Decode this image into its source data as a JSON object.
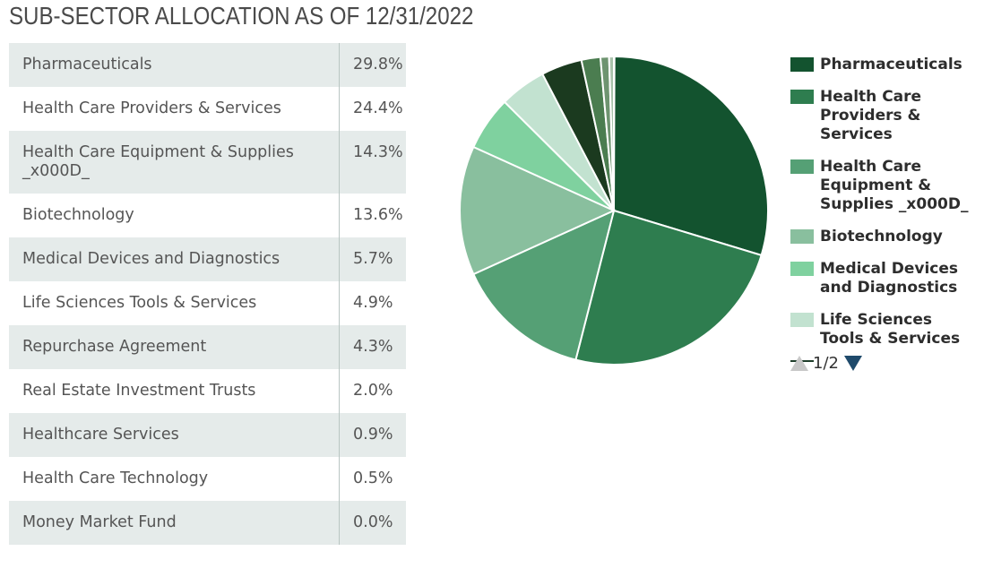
{
  "title": "SUB-SECTOR ALLOCATION AS OF 12/31/2022",
  "table": {
    "rows": [
      {
        "name": "Pharmaceuticals",
        "value": "29.8%"
      },
      {
        "name": "Health Care Providers & Services",
        "value": "24.4%"
      },
      {
        "name": "Health Care Equipment & Supplies _x000D_",
        "value": "14.3%"
      },
      {
        "name": "Biotechnology",
        "value": "13.6%"
      },
      {
        "name": "Medical Devices and Diagnostics",
        "value": "5.7%"
      },
      {
        "name": "Life Sciences Tools & Services",
        "value": "4.9%"
      },
      {
        "name": "Repurchase Agreement",
        "value": "4.3%"
      },
      {
        "name": "Real Estate Investment Trusts",
        "value": "2.0%"
      },
      {
        "name": "Healthcare Services",
        "value": "0.9%"
      },
      {
        "name": "Health Care Technology",
        "value": "0.5%"
      },
      {
        "name": "Money Market Fund",
        "value": "0.0%"
      }
    ]
  },
  "chart_data": {
    "type": "pie",
    "title": "SUB-SECTOR ALLOCATION AS OF 12/31/2022",
    "categories": [
      "Pharmaceuticals",
      "Health Care Providers & Services",
      "Health Care Equipment & Supplies _x000D_",
      "Biotechnology",
      "Medical Devices and Diagnostics",
      "Life Sciences Tools & Services",
      "Repurchase Agreement",
      "Real Estate Investment Trusts",
      "Healthcare Services",
      "Health Care Technology",
      "Money Market Fund"
    ],
    "values": [
      29.8,
      24.4,
      14.3,
      13.6,
      5.7,
      4.9,
      4.3,
      2.0,
      0.9,
      0.5,
      0.0
    ],
    "colors": [
      "#13532f",
      "#2e7d4f",
      "#55a075",
      "#89bf9e",
      "#7fd19f",
      "#c2e2d0",
      "#1b3a1f",
      "#4b7d50",
      "#6e9470",
      "#a9c3ab",
      "#d7e5d8"
    ],
    "legend_placement": "right"
  },
  "legend": {
    "items": [
      {
        "label": "Pharmaceuticals",
        "color": "#13532f"
      },
      {
        "label": "Health Care Providers & Services",
        "color": "#2e7d4f"
      },
      {
        "label": "Health Care Equipment & Supplies _x000D_",
        "color": "#55a075"
      },
      {
        "label": "Biotechnology",
        "color": "#89bf9e"
      },
      {
        "label": "Medical Devices and Diagnostics",
        "color": "#7fd19f"
      },
      {
        "label": "Life Sciences Tools & Services",
        "color": "#c2e2d0"
      }
    ],
    "pager": "1/2"
  }
}
